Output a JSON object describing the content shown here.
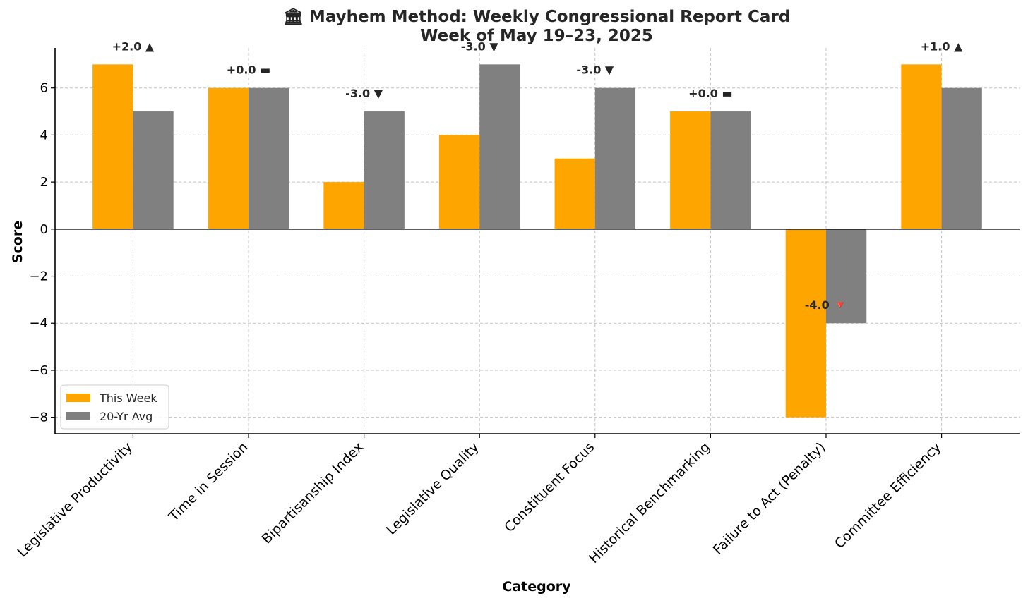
{
  "chart_data": {
    "type": "bar",
    "title": [
      "🏛 Mayhem Method: Weekly Congressional Report Card",
      "Week of May 19–23, 2025"
    ],
    "xlabel": "Category",
    "ylabel": "Score",
    "ylim": [
      -8.7,
      7.7
    ],
    "yticks": [
      -8,
      -6,
      -4,
      -2,
      0,
      2,
      4,
      6
    ],
    "ytick_labels": [
      "−8",
      "−6",
      "−4",
      "−2",
      "0",
      "2",
      "4",
      "6"
    ],
    "grid": true,
    "categories": [
      "Legislative Productivity",
      "Time in Session",
      "Bipartisanship Index",
      "Legislative Quality",
      "Constituent Focus",
      "Historical Benchmarking",
      "Failure to Act (Penalty)",
      "Committee Efficiency"
    ],
    "series": [
      {
        "name": "This Week",
        "color": "#FFA500",
        "values": [
          7,
          6,
          2,
          4,
          3,
          5,
          -8,
          7
        ]
      },
      {
        "name": "20-Yr Avg",
        "color": "#808080",
        "values": [
          5,
          6,
          5,
          7,
          6,
          5,
          -4,
          6
        ]
      }
    ],
    "annotations": [
      "+2.0 ▲",
      "+0.0 ▬",
      "-3.0 ▼",
      "-3.0 ▼",
      "-3.0 ▼",
      "+0.0 ▬",
      "-4.0 🔻",
      "+1.0 ▲"
    ],
    "legend_position": "lower-left"
  }
}
